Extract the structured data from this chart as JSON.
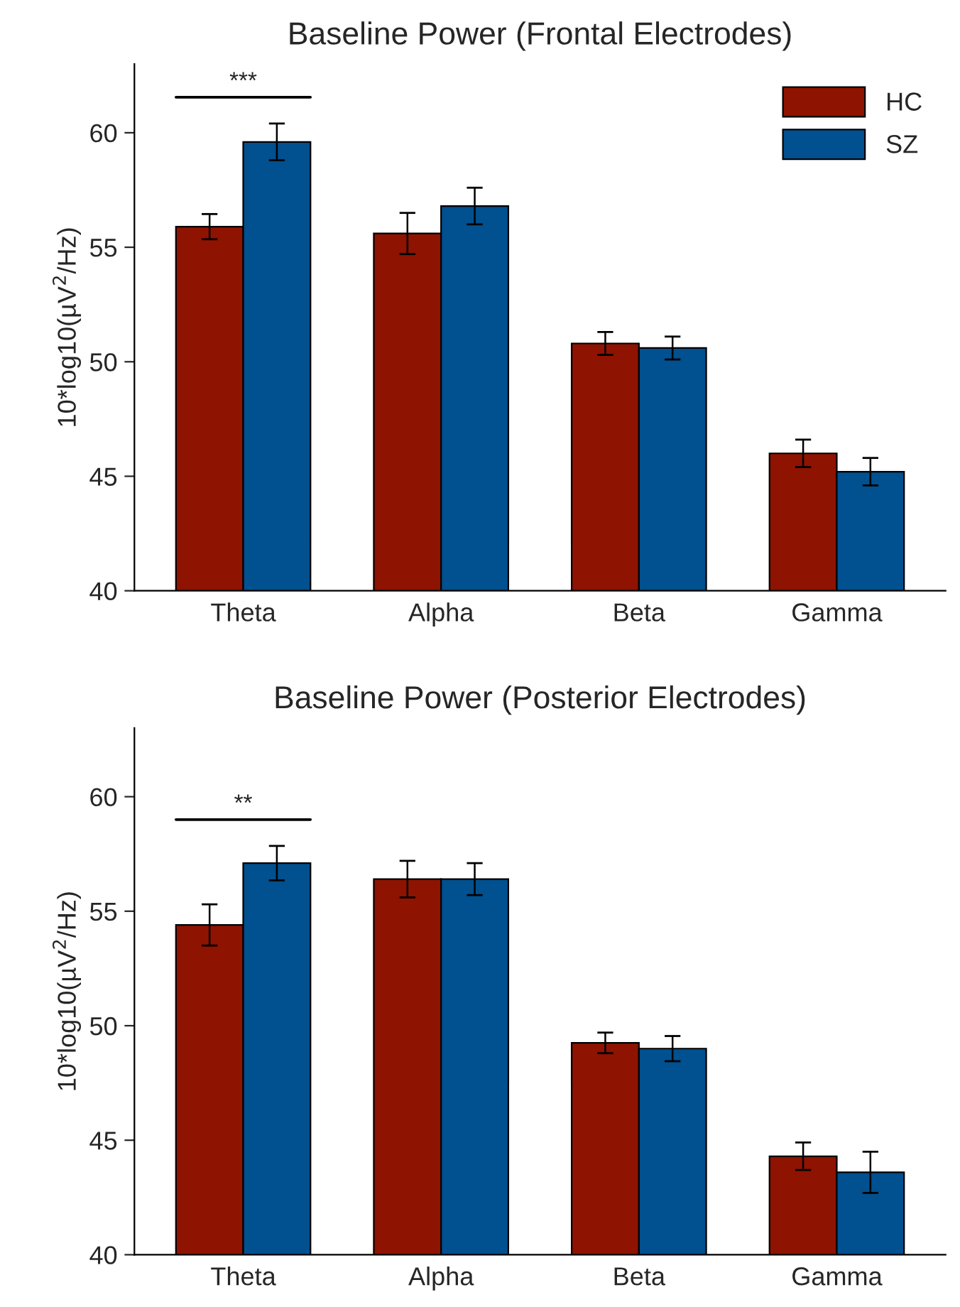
{
  "chart_data": [
    {
      "type": "bar",
      "title": "Baseline Power (Frontal Electrodes)",
      "ylabel": "10*log10(µV$^{2}$/Hz)",
      "categories": [
        "Theta",
        "Alpha",
        "Beta",
        "Gamma"
      ],
      "series": [
        {
          "name": "HC",
          "color": "#8e1300",
          "values": [
            55.9,
            55.6,
            50.8,
            46.0
          ],
          "errors": [
            0.55,
            0.9,
            0.5,
            0.6
          ]
        },
        {
          "name": "SZ",
          "color": "#01508f",
          "values": [
            59.6,
            56.8,
            50.6,
            45.2
          ],
          "errors": [
            0.8,
            0.8,
            0.5,
            0.6
          ]
        }
      ],
      "ylim": [
        40,
        63
      ],
      "yticks": [
        40,
        45,
        50,
        55,
        60
      ],
      "legend": "top right",
      "grid": false,
      "annotations": [
        "***"
      ]
    },
    {
      "type": "bar",
      "title": "Baseline Power (Posterior Electrodes)",
      "ylabel": "10*log10(µV$^{2}$/Hz)",
      "categories": [
        "Theta",
        "Alpha",
        "Beta",
        "Gamma"
      ],
      "series": [
        {
          "color": "#8e1300",
          "values": [
            54.4,
            56.4,
            49.25,
            44.3
          ],
          "errors": [
            0.9,
            0.8,
            0.45,
            0.6
          ]
        },
        {
          "color": "#01508f",
          "values": [
            57.1,
            56.4,
            49.0,
            43.6
          ],
          "errors": [
            0.75,
            0.7,
            0.55,
            0.9
          ]
        }
      ],
      "ylim": [
        40,
        63
      ],
      "yticks": [
        40,
        45,
        50,
        55,
        60
      ],
      "legend": false,
      "grid": false,
      "annotations": [
        "**"
      ]
    }
  ]
}
